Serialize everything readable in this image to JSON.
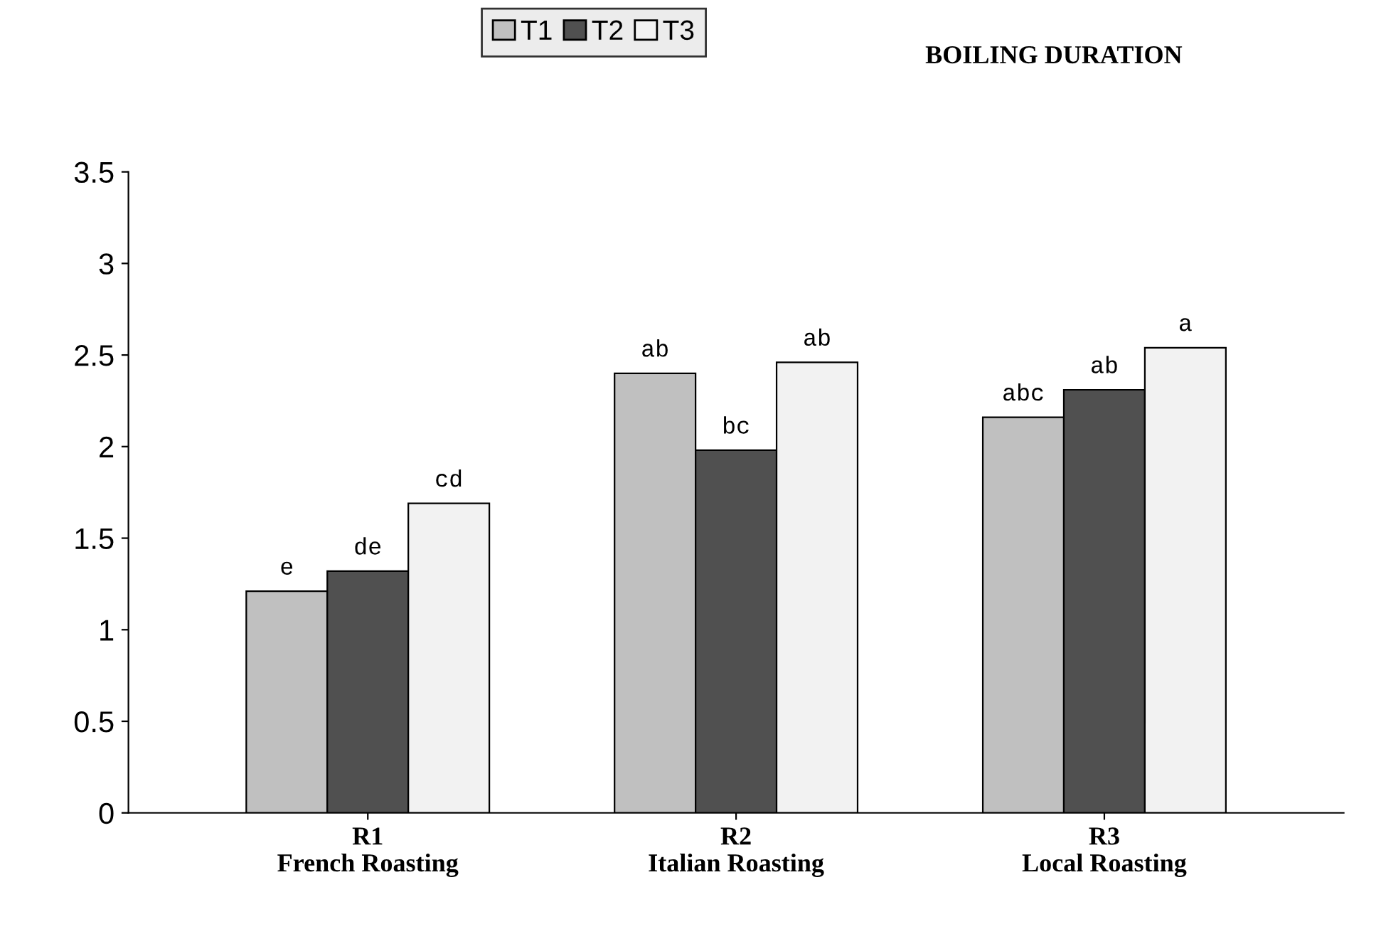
{
  "chart_data": {
    "type": "bar",
    "title": "BOILING DURATION",
    "categories": [
      "R1\nFrench Roasting",
      "R2\nItalian Roasting",
      "R3\nLocal Roasting"
    ],
    "series": [
      {
        "name": "T1",
        "color": "#c0c0c0",
        "values": [
          1.21,
          2.4,
          2.16
        ],
        "value_labels": [
          "e",
          "ab",
          "abc"
        ]
      },
      {
        "name": "T2",
        "color": "#505050",
        "values": [
          1.32,
          1.98,
          2.31
        ],
        "value_labels": [
          "de",
          "bc",
          "ab"
        ]
      },
      {
        "name": "T3",
        "color": "#f2f2f2",
        "values": [
          1.69,
          2.46,
          2.54
        ],
        "value_labels": [
          "cd",
          "ab",
          "a"
        ]
      }
    ],
    "ylim": [
      0,
      3.5
    ],
    "yticks": [
      0,
      0.5,
      1,
      1.5,
      2,
      2.5,
      3,
      3.5
    ],
    "grid": false,
    "legend": "top"
  }
}
